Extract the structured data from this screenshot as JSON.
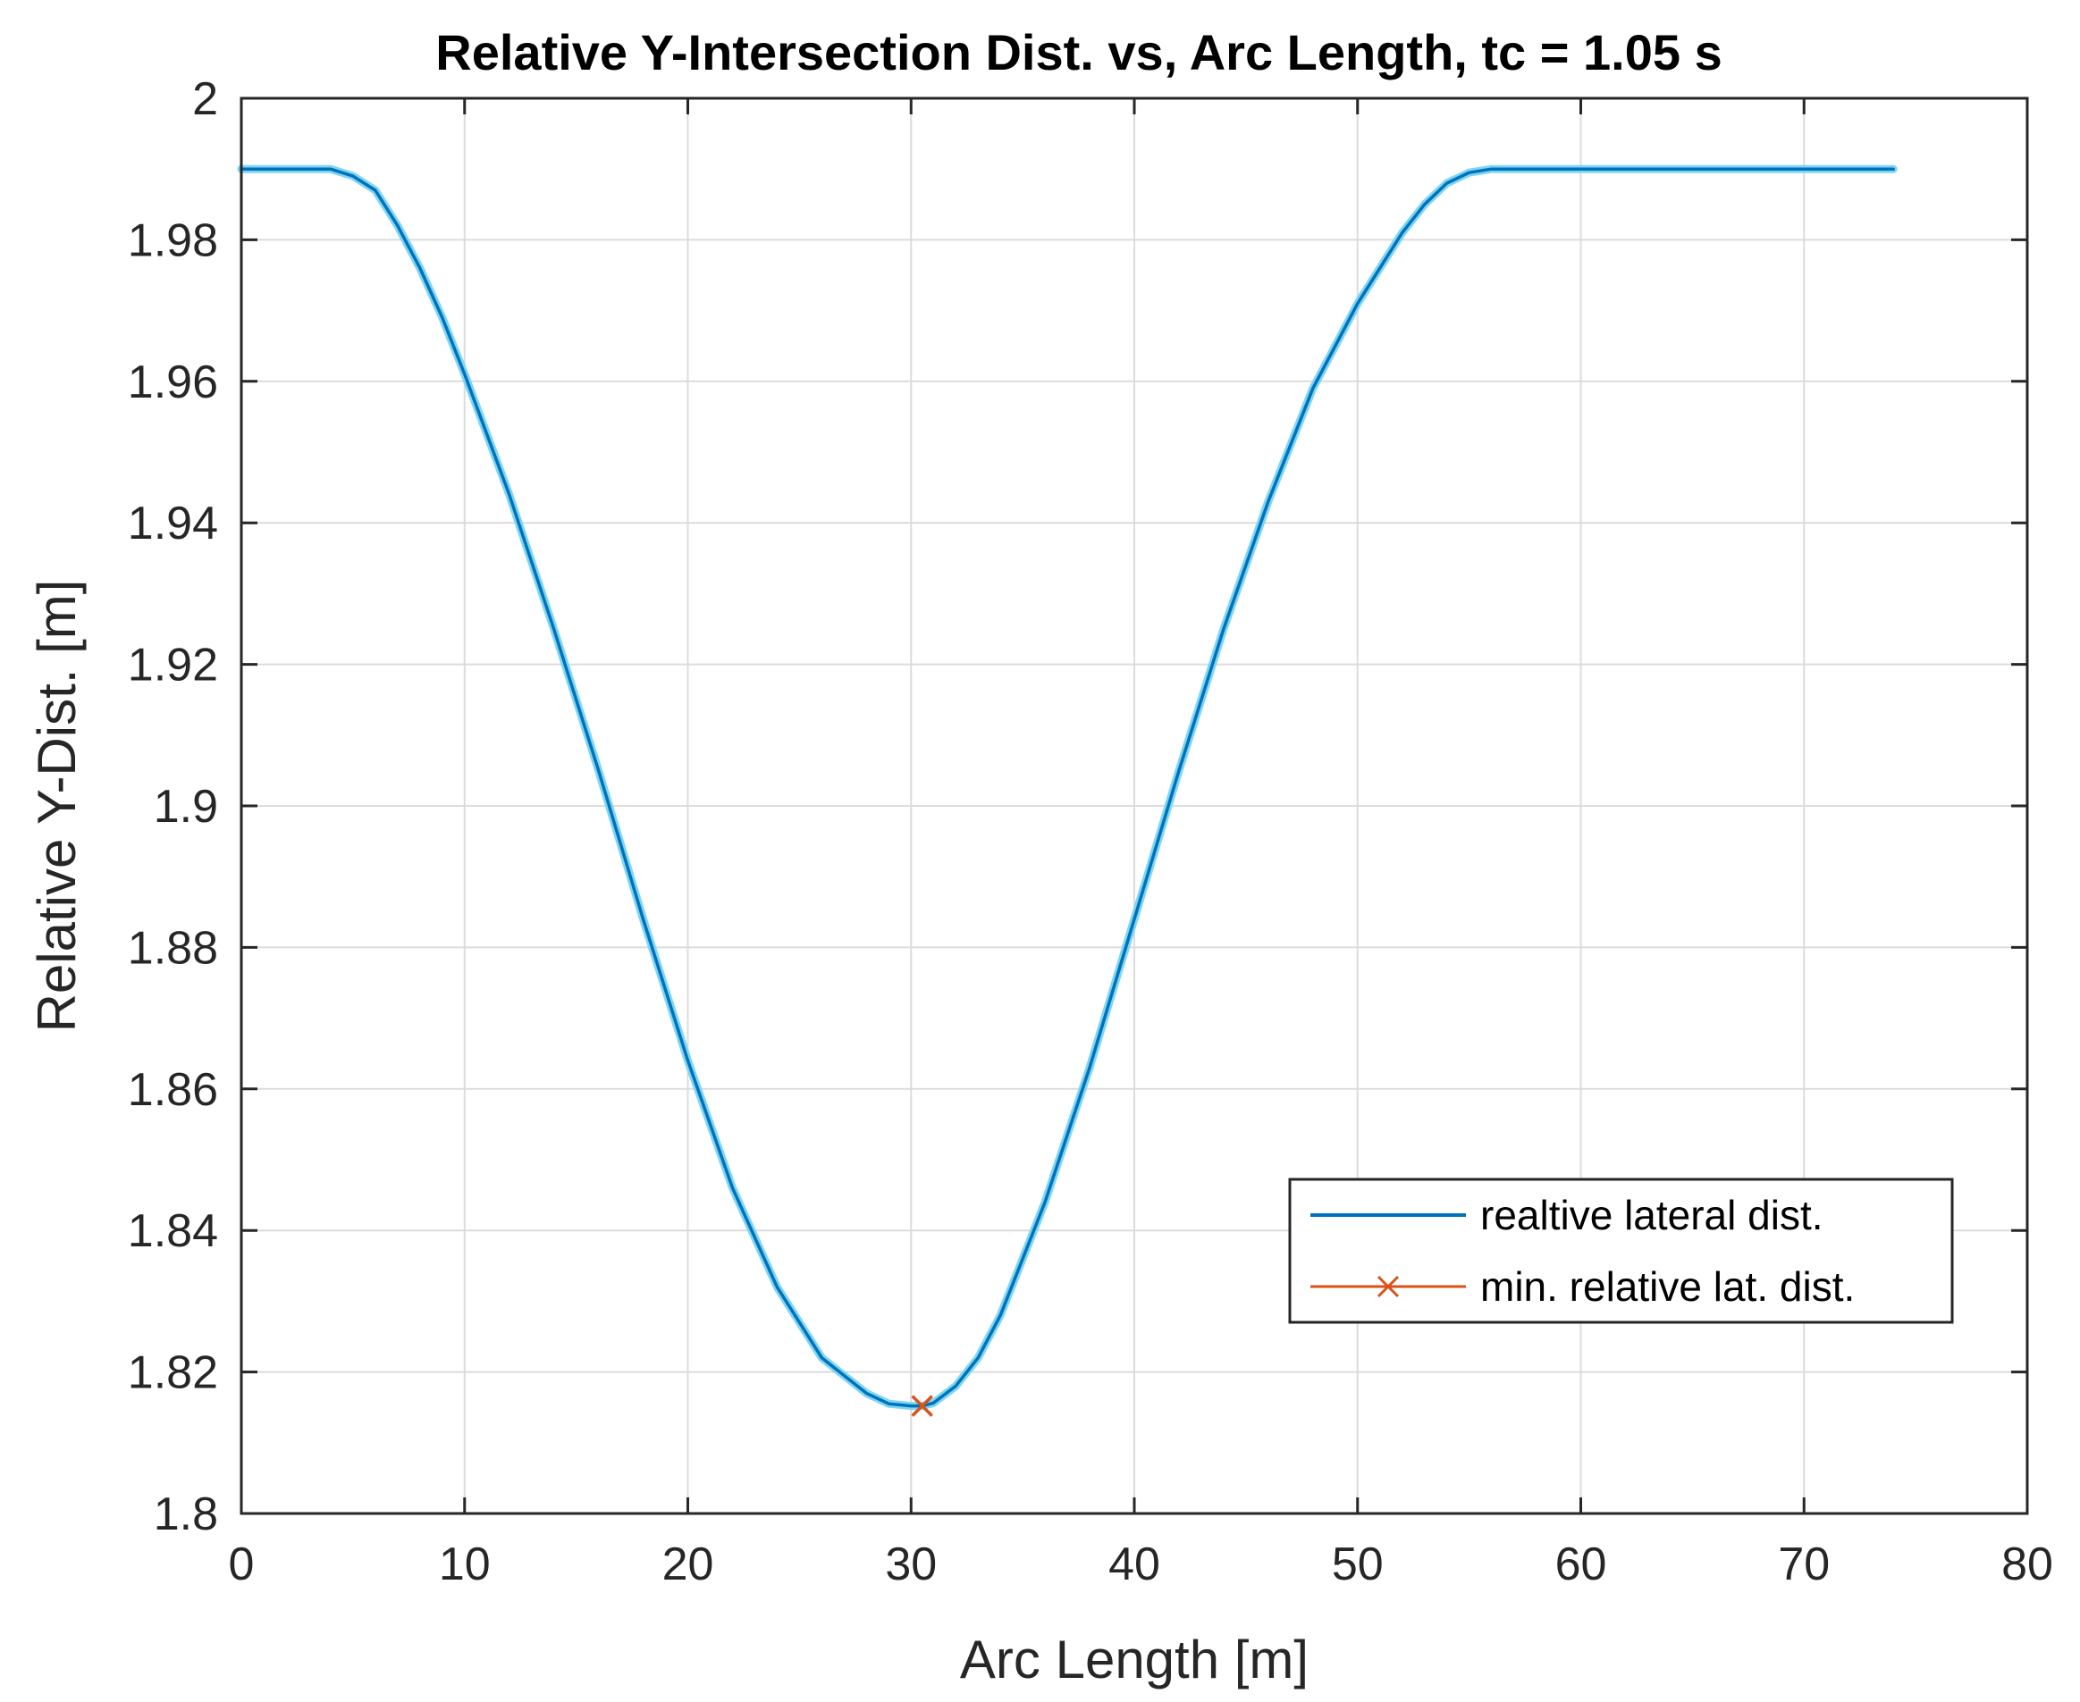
{
  "chart_data": {
    "type": "line",
    "title": "Relative Y-Intersection Dist. vs, Arc Length, tc = 1.05 s",
    "xlabel": "Arc Length [m]",
    "ylabel": "Relative Y-Dist. [m]",
    "xlim": [
      0,
      80
    ],
    "ylim": [
      1.8,
      2.0
    ],
    "grid": true,
    "xticks": [
      0,
      10,
      20,
      30,
      40,
      50,
      60,
      70,
      80
    ],
    "xtick_labels": [
      "0",
      "10",
      "20",
      "30",
      "40",
      "50",
      "60",
      "70",
      "80"
    ],
    "yticks": [
      1.8,
      1.82,
      1.84,
      1.86,
      1.88,
      1.9,
      1.92,
      1.94,
      1.96,
      1.98,
      2.0
    ],
    "ytick_labels": [
      "1.8",
      "1.82",
      "1.84",
      "1.86",
      "1.88",
      "1.9",
      "1.92",
      "1.94",
      "1.96",
      "1.98",
      "2"
    ],
    "legend_position": "bottom-right",
    "series": [
      {
        "name": "realtive lateral dist.",
        "color": "#0072BD",
        "x": [
          0,
          2,
          4,
          5,
          6,
          7,
          8,
          9,
          10,
          12,
          14,
          16,
          18,
          20,
          22,
          24,
          26,
          28,
          29,
          30,
          30.5,
          31,
          32,
          33,
          34,
          36,
          38,
          40,
          42,
          44,
          46,
          48,
          50,
          52,
          53,
          54,
          55,
          56,
          57,
          58,
          60,
          65,
          70,
          74
        ],
        "y": [
          1.99,
          1.99,
          1.99,
          1.989,
          1.987,
          1.982,
          1.976,
          1.969,
          1.961,
          1.944,
          1.925,
          1.905,
          1.884,
          1.864,
          1.846,
          1.832,
          1.822,
          1.817,
          1.8155,
          1.8152,
          1.8152,
          1.8156,
          1.818,
          1.822,
          1.828,
          1.844,
          1.863,
          1.884,
          1.905,
          1.925,
          1.943,
          1.959,
          1.971,
          1.981,
          1.985,
          1.988,
          1.9895,
          1.99,
          1.99,
          1.99,
          1.99,
          1.99,
          1.99,
          1.99
        ]
      },
      {
        "name": "min. relative lat. dist.",
        "color": "#D95319",
        "marker": "x",
        "x": [
          30.5
        ],
        "y": [
          1.8152
        ]
      }
    ]
  }
}
